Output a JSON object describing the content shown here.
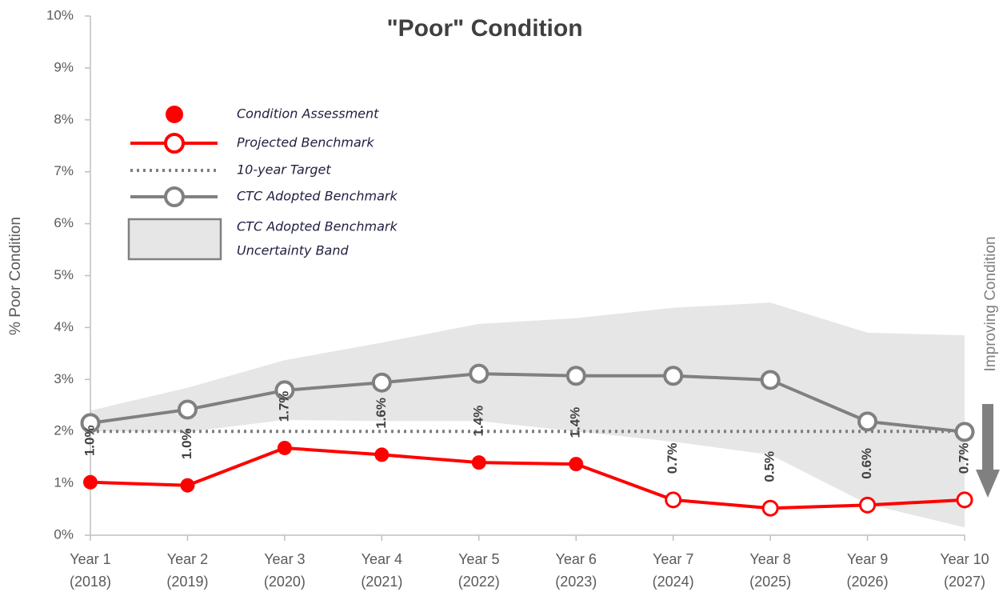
{
  "chart_data": {
    "type": "line",
    "title": "\"Poor\" Condition",
    "y_label": "% Poor Condition",
    "annotation": "Improving Condition",
    "categories": [
      [
        "Year 1",
        "(2018)"
      ],
      [
        "Year 2",
        "(2019)"
      ],
      [
        "Year 3",
        "(2020)"
      ],
      [
        "Year 4",
        "(2021)"
      ],
      [
        "Year 5",
        "(2022)"
      ],
      [
        "Year 6",
        "(2023)"
      ],
      [
        "Year 7",
        "(2024)"
      ],
      [
        "Year 8",
        "(2025)"
      ],
      [
        "Year 9",
        "(2026)"
      ],
      [
        "Year 10",
        "(2027)"
      ]
    ],
    "ylim": [
      0,
      10
    ],
    "yticks": [
      {
        "value": 0,
        "label": "0%"
      },
      {
        "value": 1,
        "label": "1%"
      },
      {
        "value": 2,
        "label": "2%"
      },
      {
        "value": 3,
        "label": "3%"
      },
      {
        "value": 4,
        "label": "4%"
      },
      {
        "value": 5,
        "label": "5%"
      },
      {
        "value": 6,
        "label": "6%"
      },
      {
        "value": 7,
        "label": "7%"
      },
      {
        "value": 8,
        "label": "8%"
      },
      {
        "value": 9,
        "label": "9%"
      },
      {
        "value": 10,
        "label": "10%"
      }
    ],
    "band": {
      "name": [
        "CTC Adopted Benchmark",
        "Uncertainty Band"
      ],
      "color": "#e6e6e6",
      "upper": [
        2.4,
        2.84,
        3.37,
        3.71,
        4.07,
        4.18,
        4.38,
        4.48,
        3.9,
        3.85
      ],
      "lower": [
        2.0,
        1.99,
        2.22,
        2.2,
        2.2,
        2.0,
        1.8,
        1.55,
        0.6,
        0.15
      ]
    },
    "series": [
      {
        "name": "Condition Assessment",
        "color": "#ff0000",
        "marker": "filled",
        "values": [
          1.02,
          0.96,
          1.68,
          1.55,
          1.4,
          1.37,
          null,
          null,
          null,
          null
        ],
        "value_labels": [
          "1.0%",
          "1.0%",
          "1.7%",
          "1.6%",
          "1.4%",
          "1.4%",
          null,
          null,
          null,
          null
        ]
      },
      {
        "name": "Projected Benchmark",
        "color": "#ff0000",
        "marker": "open",
        "values": [
          null,
          null,
          null,
          null,
          null,
          null,
          0.68,
          0.52,
          0.58,
          0.68
        ],
        "value_labels": [
          null,
          null,
          null,
          null,
          null,
          null,
          "0.7%",
          "0.5%",
          "0.6%",
          "0.7%"
        ]
      },
      {
        "name": "10-year Target",
        "color": "#7f7f7f",
        "style": "dotted",
        "values": [
          2,
          2,
          2,
          2,
          2,
          2,
          2,
          2,
          2,
          2
        ]
      },
      {
        "name": "CTC Adopted Benchmark",
        "color": "#808080",
        "marker": "open",
        "values": [
          2.16,
          2.42,
          2.79,
          2.94,
          3.11,
          3.07,
          3.07,
          2.99,
          2.19,
          1.99
        ]
      }
    ]
  }
}
